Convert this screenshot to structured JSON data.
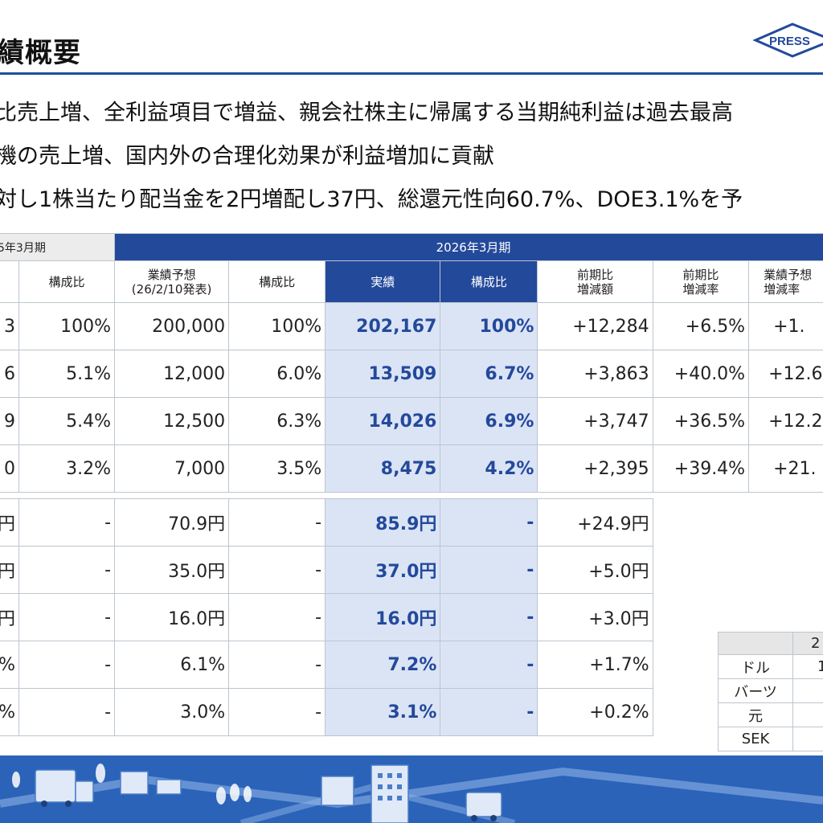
{
  "header": {
    "title": "績概要",
    "logo_text": "PRESS"
  },
  "bullets": [
    "比売上増、全利益項目で増益、親会社株主に帰属する当期純利益は過去最高",
    "機の売上増、国内外の合理化効果が利益増加に貢献",
    "対し1株当たり配当金を2円増配し37円、総還元性向60.7%、DOE3.1%を予"
  ],
  "table": {
    "prev_period": "5年3月期",
    "cur_period": "2026年3月期",
    "headers": [
      "構成比",
      "業績予想\n(26/2/10発表)",
      "構成比",
      "実績",
      "構成比",
      "前期比\n増減額",
      "前期比\n増減率",
      "業績予想\n増減率"
    ],
    "rows": [
      [
        "3",
        "100%",
        "200,000",
        "100%",
        "202,167",
        "100%",
        "+12,284",
        "+6.5%",
        "+1."
      ],
      [
        "6",
        "5.1%",
        "12,000",
        "6.0%",
        "13,509",
        "6.7%",
        "+3,863",
        "+40.0%",
        "+12.6"
      ],
      [
        "9",
        "5.4%",
        "12,500",
        "6.3%",
        "14,026",
        "6.9%",
        "+3,747",
        "+36.5%",
        "+12.2"
      ],
      [
        "0",
        "3.2%",
        "7,000",
        "3.5%",
        "8,475",
        "4.2%",
        "+2,395",
        "+39.4%",
        "+21."
      ]
    ],
    "rows2": [
      [
        "円",
        "-",
        "70.9円",
        "-",
        "85.9円",
        "-",
        "+24.9円"
      ],
      [
        "円",
        "-",
        "35.0円",
        "-",
        "37.0円",
        "-",
        "+5.0円"
      ],
      [
        "円",
        "-",
        "16.0円",
        "-",
        "16.0円",
        "-",
        "+3.0円"
      ],
      [
        "%",
        "-",
        "6.1%",
        "-",
        "7.2%",
        "-",
        "+1.7%"
      ],
      [
        "%",
        "-",
        "3.0%",
        "-",
        "3.1%",
        "-",
        "+0.2%"
      ]
    ]
  },
  "fx_table": {
    "header": "2",
    "rows": [
      {
        "currency": "ドル",
        "value": "1"
      },
      {
        "currency": "バーツ",
        "value": ""
      },
      {
        "currency": "元",
        "value": ""
      },
      {
        "currency": "SEK",
        "value": ""
      }
    ]
  },
  "colors": {
    "accent": "#23499b",
    "highlight": "#dbe4f5",
    "footer": "#2a63b8"
  }
}
